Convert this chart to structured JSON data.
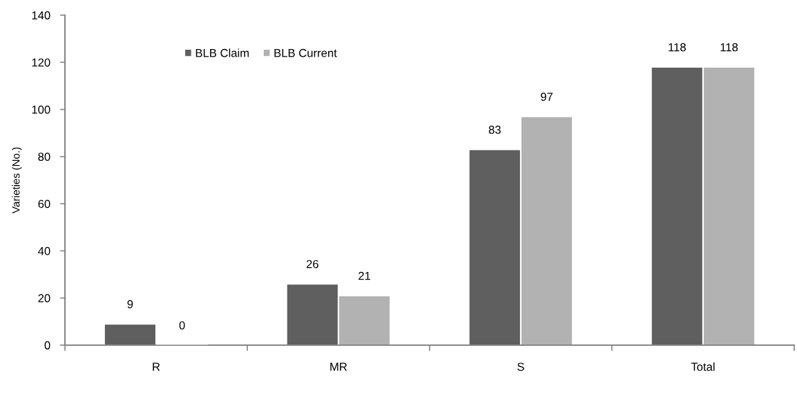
{
  "chart_data": {
    "type": "bar",
    "ylabel": "Varieties (No.)",
    "categories": [
      "R",
      "MR",
      "S",
      "Total"
    ],
    "series": [
      {
        "name": "BLB Claim",
        "color": "#5f5f5f",
        "values": [
          9,
          26,
          83,
          118
        ]
      },
      {
        "name": "BLB Current",
        "color": "#b2b2b2",
        "values": [
          0,
          21,
          97,
          118
        ]
      }
    ],
    "ylim": [
      0,
      140
    ],
    "yticks": [
      0,
      20,
      40,
      60,
      80,
      100,
      120,
      140
    ],
    "data_labels": true,
    "legend": "top left",
    "grid": false
  }
}
